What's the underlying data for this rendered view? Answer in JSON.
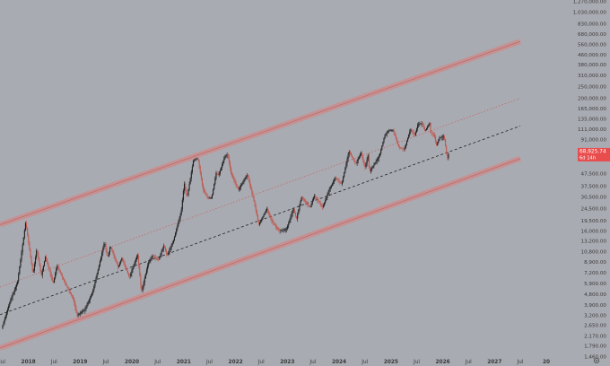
{
  "chart_data": {
    "type": "candlestick",
    "title": "",
    "xlabel": "",
    "ylabel": "",
    "y_scale": "log",
    "ylim": [
      1450,
      1300000
    ],
    "xlim": [
      "2017-06-15",
      "2028-07-15"
    ],
    "grid": false,
    "legend": "none",
    "y_ticks": [
      "1,270,000.00",
      "1,030,000.00",
      "830,000.00",
      "680,000.00",
      "560,000.00",
      "460,000.00",
      "380,000.00",
      "310,000.00",
      "250,000.00",
      "200,000.00",
      "165,000.00",
      "135,000.00",
      "111,000.00",
      "91,000.00",
      "47,500.00",
      "37,500.00",
      "30,500.00",
      "24,500.00",
      "19,500.00",
      "16,000.00",
      "13,200.00",
      "10,800.00",
      "8,900.00",
      "7,200.00",
      "5,900.00",
      "4,800.00",
      "3,900.00",
      "3,200.00",
      "2,650.00",
      "2,170.00",
      "1,790.00",
      "1,460.00"
    ],
    "x_ticks": [
      "Jul",
      "2018",
      "Jul",
      "2019",
      "Jul",
      "2020",
      "Jul",
      "2021",
      "Jul",
      "2022",
      "Jul",
      "2023",
      "Jul",
      "2024",
      "Jul",
      "2025",
      "Jul",
      "2026",
      "Jul",
      "2027",
      "Jul",
      "20"
    ],
    "last_price": {
      "label": "68,925.74",
      "sublabel": "6d 14h",
      "value": 68925.74
    },
    "price_points": [
      [
        "2017-07-01",
        2500
      ],
      [
        "2017-09-01",
        4300
      ],
      [
        "2017-10-20",
        6000
      ],
      [
        "2017-12-17",
        19000
      ],
      [
        "2018-02-06",
        7000
      ],
      [
        "2018-03-05",
        11400
      ],
      [
        "2018-04-06",
        6800
      ],
      [
        "2018-05-05",
        9800
      ],
      [
        "2018-06-29",
        5900
      ],
      [
        "2018-07-26",
        8300
      ],
      [
        "2018-09-10",
        6300
      ],
      [
        "2018-11-20",
        4300
      ],
      [
        "2018-12-15",
        3200
      ],
      [
        "2019-02-08",
        3600
      ],
      [
        "2019-04-03",
        5000
      ],
      [
        "2019-05-15",
        8000
      ],
      [
        "2019-06-26",
        13000
      ],
      [
        "2019-07-17",
        9500
      ],
      [
        "2019-08-06",
        12000
      ],
      [
        "2019-09-30",
        8000
      ],
      [
        "2019-10-26",
        9500
      ],
      [
        "2019-12-18",
        6600
      ],
      [
        "2020-02-14",
        10300
      ],
      [
        "2020-03-12",
        5000
      ],
      [
        "2020-04-30",
        8800
      ],
      [
        "2020-06-01",
        10000
      ],
      [
        "2020-07-10",
        9200
      ],
      [
        "2020-08-17",
        12200
      ],
      [
        "2020-09-08",
        10000
      ],
      [
        "2020-10-21",
        13000
      ],
      [
        "2020-12-17",
        23000
      ],
      [
        "2021-01-08",
        40000
      ],
      [
        "2021-01-27",
        30000
      ],
      [
        "2021-03-13",
        61000
      ],
      [
        "2021-04-14",
        64000
      ],
      [
        "2021-05-19",
        36000
      ],
      [
        "2021-06-22",
        30000
      ],
      [
        "2021-07-20",
        30000
      ],
      [
        "2021-08-22",
        49000
      ],
      [
        "2021-09-07",
        46000
      ],
      [
        "2021-10-20",
        66000
      ],
      [
        "2021-11-10",
        69000
      ],
      [
        "2021-12-04",
        48000
      ],
      [
        "2022-01-24",
        35000
      ],
      [
        "2022-03-29",
        47000
      ],
      [
        "2022-05-12",
        29000
      ],
      [
        "2022-06-18",
        18000
      ],
      [
        "2022-08-13",
        24500
      ],
      [
        "2022-09-20",
        19000
      ],
      [
        "2022-11-09",
        16000
      ],
      [
        "2022-12-30",
        16500
      ],
      [
        "2023-02-16",
        24500
      ],
      [
        "2023-03-10",
        20000
      ],
      [
        "2023-04-14",
        30500
      ],
      [
        "2023-06-15",
        25000
      ],
      [
        "2023-07-13",
        31500
      ],
      [
        "2023-09-11",
        25000
      ],
      [
        "2023-10-24",
        34500
      ],
      [
        "2023-12-08",
        44000
      ],
      [
        "2024-01-23",
        39000
      ],
      [
        "2024-03-14",
        73000
      ],
      [
        "2024-05-01",
        57000
      ],
      [
        "2024-06-07",
        71500
      ],
      [
        "2024-07-05",
        53500
      ],
      [
        "2024-07-29",
        69000
      ],
      [
        "2024-08-05",
        49000
      ],
      [
        "2024-10-15",
        67000
      ],
      [
        "2024-11-22",
        99000
      ],
      [
        "2024-12-17",
        108000
      ],
      [
        "2025-01-20",
        109000
      ],
      [
        "2025-02-28",
        79000
      ],
      [
        "2025-04-08",
        75000
      ],
      [
        "2025-05-22",
        111000
      ],
      [
        "2025-06-22",
        99000
      ],
      [
        "2025-07-14",
        123000
      ],
      [
        "2025-08-14",
        124000
      ],
      [
        "2025-09-01",
        107000
      ],
      [
        "2025-10-06",
        126000
      ],
      [
        "2025-10-10",
        104000
      ],
      [
        "2025-11-05",
        100000
      ],
      [
        "2025-11-21",
        81000
      ],
      [
        "2025-12-10",
        94000
      ],
      [
        "2026-01-14",
        97000
      ],
      [
        "2026-02-06",
        63000
      ],
      [
        "2026-02-12",
        68925.74
      ]
    ],
    "channel_lines": [
      {
        "role": "upper band",
        "style": "thick",
        "color": "#c98e8e",
        "from": [
          "2017-06-15",
          18000
        ],
        "to": [
          "2027-07-01",
          590000
        ]
      },
      {
        "role": "lower band",
        "style": "thick",
        "color": "#c98e8e",
        "from": [
          "2017-06-15",
          1720
        ],
        "to": [
          "2027-07-01",
          63500
        ]
      },
      {
        "role": "upper middle",
        "style": "dotted",
        "color": "#c16a6a",
        "from": [
          "2017-06-15",
          5500
        ],
        "to": [
          "2027-07-01",
          200000
        ]
      },
      {
        "role": "lower middle",
        "style": "dashed",
        "color": "#222222",
        "from": [
          "2017-06-15",
          3250
        ],
        "to": [
          "2027-07-01",
          118000
        ]
      }
    ],
    "colors": {
      "background": "#a9abb2",
      "up": "#1f1f1f",
      "down": "#c0584f",
      "band": "#c98e8e",
      "last_price": "#e84c4c",
      "axis_text": "#3a3a3a"
    }
  }
}
